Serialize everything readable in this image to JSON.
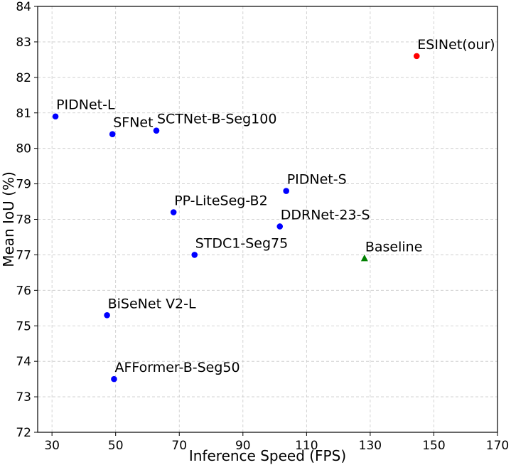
{
  "chart_data": {
    "type": "scatter",
    "title": "",
    "xlabel": "Inference Speed (FPS)",
    "ylabel": "Mean IoU (%)",
    "xlim": [
      25.5,
      170
    ],
    "ylim": [
      72,
      84
    ],
    "xticks": [
      30,
      50,
      70,
      90,
      110,
      130,
      150,
      170
    ],
    "yticks": [
      72,
      73,
      74,
      75,
      76,
      77,
      78,
      79,
      80,
      81,
      82,
      83,
      84
    ],
    "grid": true,
    "points": [
      {
        "label": "PIDNet-L",
        "x": 31.1,
        "y": 80.9,
        "color": "#0000ff",
        "marker": "circle",
        "label_pos": "above-right"
      },
      {
        "label": "SFNet",
        "x": 49,
        "y": 80.4,
        "color": "#0000ff",
        "marker": "circle",
        "label_pos": "above-right"
      },
      {
        "label": "SCTNet-B-Seg100",
        "x": 62.8,
        "y": 80.5,
        "color": "#0000ff",
        "marker": "circle",
        "label_pos": "above-right"
      },
      {
        "label": "PIDNet-S",
        "x": 103.6,
        "y": 78.8,
        "color": "#0000ff",
        "marker": "circle",
        "label_pos": "above-right"
      },
      {
        "label": "PP-LiteSeg-B2",
        "x": 68.2,
        "y": 78.2,
        "color": "#0000ff",
        "marker": "circle",
        "label_pos": "above-right"
      },
      {
        "label": "DDRNet-23-S",
        "x": 101.6,
        "y": 77.8,
        "color": "#0000ff",
        "marker": "circle",
        "label_pos": "above-right"
      },
      {
        "label": "STDC1-Seg75",
        "x": 74.8,
        "y": 77.0,
        "color": "#0000ff",
        "marker": "circle",
        "label_pos": "above-right"
      },
      {
        "label": "Baseline",
        "x": 128.2,
        "y": 76.9,
        "color": "#008000",
        "marker": "triangle",
        "label_pos": "above-right"
      },
      {
        "label": "BiSeNet V2-L",
        "x": 47.3,
        "y": 75.3,
        "color": "#0000ff",
        "marker": "circle",
        "label_pos": "above-right"
      },
      {
        "label": "AFFormer-B-Seg50",
        "x": 49.5,
        "y": 73.5,
        "color": "#0000ff",
        "marker": "circle",
        "label_pos": "above-right"
      },
      {
        "label": "ESINet(our)",
        "x": 144.6,
        "y": 82.6,
        "color": "#ff0000",
        "marker": "circle",
        "label_pos": "above-right"
      }
    ]
  }
}
